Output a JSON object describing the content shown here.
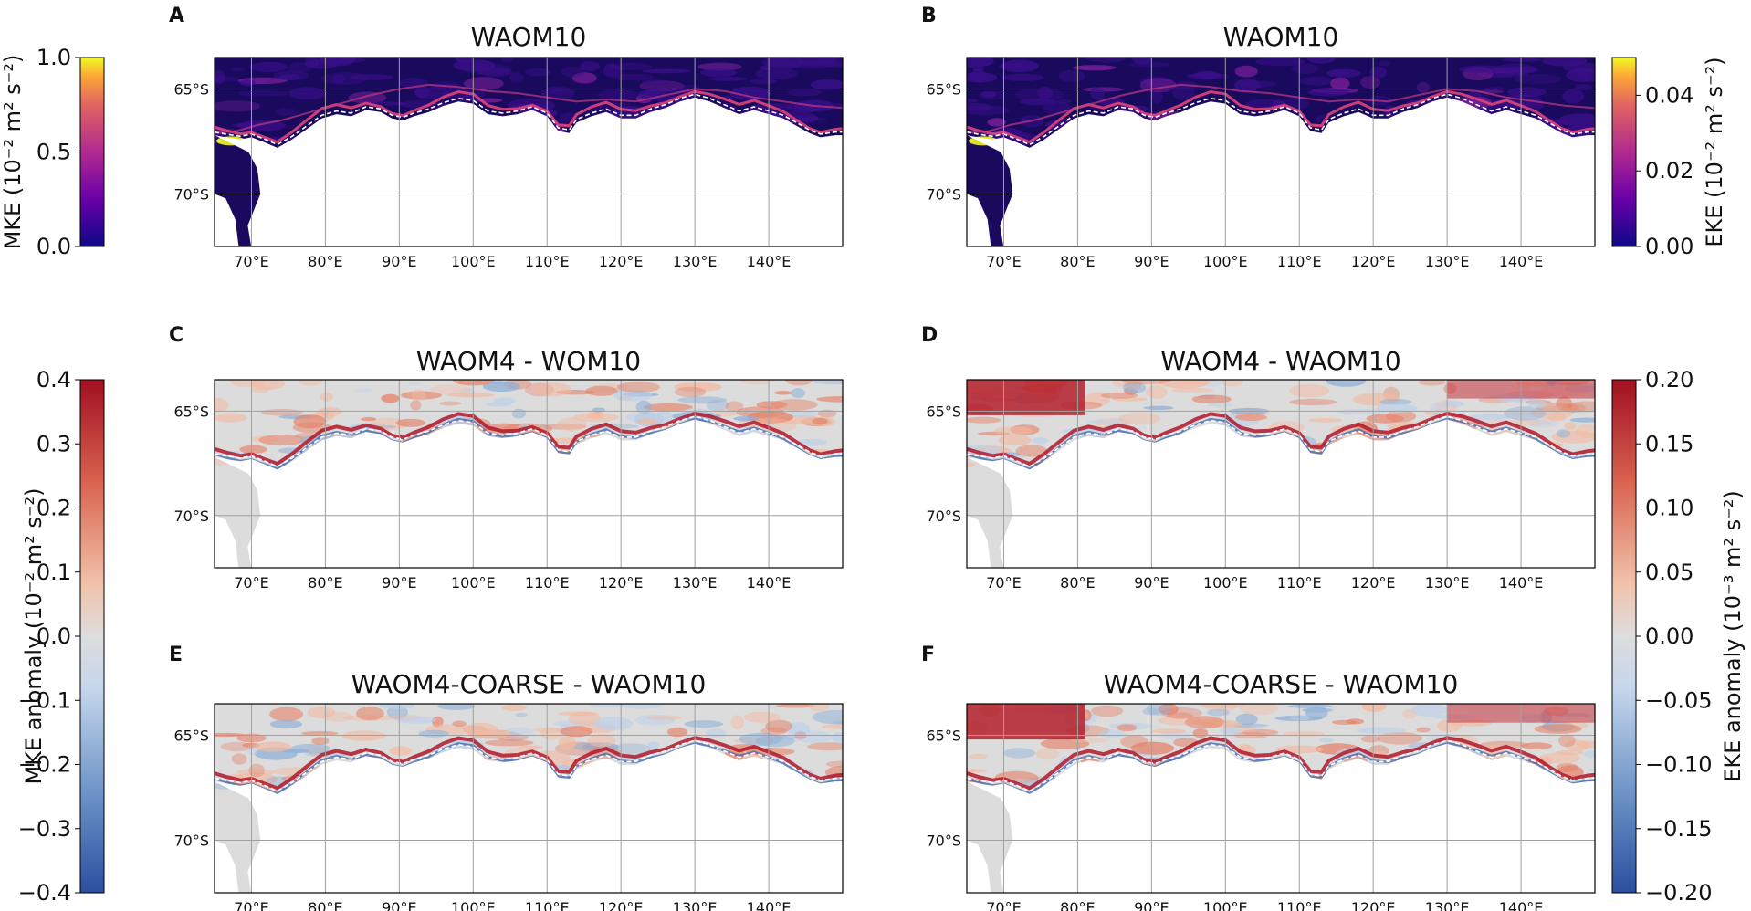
{
  "colors": {
    "ocean_dark": "#1a0a5e",
    "land": "#ffffff",
    "anomaly_bg": "#dcdcdc",
    "grid": "#a0a0a0",
    "frame": "#000000"
  },
  "figure": {
    "lon_ticks": [
      "70°E",
      "80°E",
      "90°E",
      "100°E",
      "110°E",
      "120°E",
      "130°E",
      "140°E"
    ],
    "lat_ticks": [
      "65°S",
      "70°S"
    ],
    "lon_range": [
      65,
      150
    ],
    "lat_range": [
      -72.5,
      -63.5
    ]
  },
  "colorbars": {
    "mke": {
      "label": "MKE (10⁻² m² s⁻²)",
      "ticks": [
        "1.0",
        "0.5",
        "0.0"
      ],
      "cmap": "plasma"
    },
    "eke": {
      "label": "EKE (10⁻² m² s⁻²)",
      "ticks": [
        "0.04",
        "0.02",
        "0.00"
      ],
      "cmap": "plasma"
    },
    "mke_anom": {
      "label": "MKE anomaly (10⁻² m² s⁻²)",
      "ticks": [
        "0.4",
        "0.3",
        "0.2",
        "0.1",
        "0.0",
        "−0.1",
        "−0.2",
        "−0.3",
        "−0.4"
      ],
      "cmap": "RdBu_r"
    },
    "eke_anom": {
      "label": "EKE anomaly (10⁻³ m² s⁻²)",
      "ticks": [
        "0.20",
        "0.15",
        "0.10",
        "0.05",
        "0.00",
        "−0.05",
        "−0.10",
        "−0.15",
        "−0.20"
      ],
      "cmap": "RdBu_r"
    }
  },
  "chart_data": [
    {
      "type": "heatmap",
      "panel": "A",
      "title": "WAOM10",
      "variable": "MKE",
      "colorbar": "mke",
      "vmin": 0.0,
      "vmax": 1.0
    },
    {
      "type": "heatmap",
      "panel": "B",
      "title": "WAOM10",
      "variable": "EKE",
      "colorbar": "eke",
      "vmin": 0.0,
      "vmax": 0.05
    },
    {
      "type": "heatmap",
      "panel": "C",
      "title": "WAOM4 - WOM10",
      "variable": "MKE anomaly",
      "colorbar": "mke_anom",
      "vmin": -0.4,
      "vmax": 0.4
    },
    {
      "type": "heatmap",
      "panel": "D",
      "title": "WAOM4 - WAOM10",
      "variable": "EKE anomaly",
      "colorbar": "eke_anom",
      "vmin": -0.2,
      "vmax": 0.2
    },
    {
      "type": "heatmap",
      "panel": "E",
      "title": "WAOM4-COARSE - WAOM10",
      "variable": "MKE anomaly",
      "colorbar": "mke_anom",
      "vmin": -0.4,
      "vmax": 0.4
    },
    {
      "type": "heatmap",
      "panel": "F",
      "title": "WAOM4-COARSE - WAOM10",
      "variable": "EKE anomaly",
      "colorbar": "eke_anom",
      "vmin": -0.2,
      "vmax": 0.2
    }
  ]
}
